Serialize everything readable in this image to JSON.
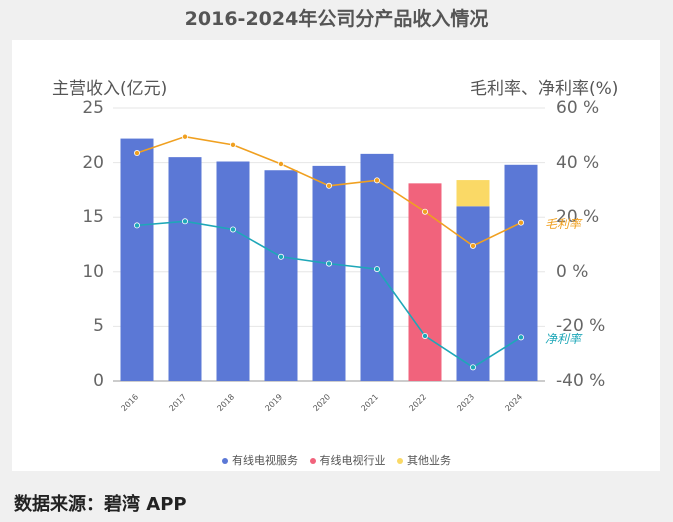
{
  "chart_data": {
    "type": "bar",
    "title": "2016-2024年公司分产品收入情况",
    "ylabel": "主营收入(亿元)",
    "y2label": "毛利率、净利率(%)",
    "ylim": [
      0,
      25
    ],
    "y2lim": [
      -40,
      60
    ],
    "yticks": [
      "0",
      "5",
      "10",
      "15",
      "20",
      "25"
    ],
    "y2ticks": [
      "-40 %",
      "-20 %",
      "0 %",
      "20 %",
      "40 %",
      "60 %"
    ],
    "categories": [
      "2016",
      "2017",
      "2018",
      "2019",
      "2020",
      "2021",
      "2022",
      "2023",
      "2024"
    ],
    "series": [
      {
        "name": "有线电视服务",
        "kind": "bar",
        "color": "#5b78d6",
        "values": [
          22.2,
          20.5,
          20.1,
          19.3,
          19.7,
          20.8,
          0,
          16.0,
          19.8
        ]
      },
      {
        "name": "有线电视行业",
        "kind": "bar",
        "color": "#f1637c",
        "values": [
          0,
          0,
          0,
          0,
          0,
          0,
          18.1,
          0,
          0
        ]
      },
      {
        "name": "其他业务",
        "kind": "bar",
        "color": "#fad966",
        "values": [
          0,
          0,
          0,
          0,
          0,
          0,
          0,
          2.4,
          0
        ]
      },
      {
        "name": "毛利率",
        "kind": "line",
        "axis": "right",
        "color": "#f0a020",
        "values": [
          43.5,
          49.5,
          46.5,
          39.5,
          31.5,
          33.5,
          22.0,
          9.5,
          18.0
        ]
      },
      {
        "name": "净利率",
        "kind": "line",
        "axis": "right",
        "color": "#1ea7b8",
        "values": [
          17.0,
          18.5,
          15.5,
          5.5,
          3.0,
          1.0,
          -23.5,
          -35.0,
          -24.0
        ]
      }
    ],
    "legend": [
      "有线电视服务",
      "有线电视行业",
      "其他业务"
    ],
    "legend_position": "bottom"
  },
  "source": "数据来源：碧湾 APP"
}
